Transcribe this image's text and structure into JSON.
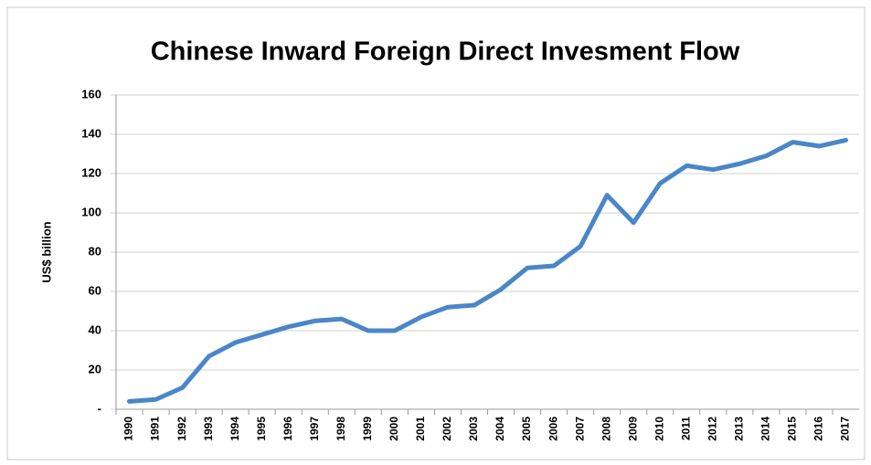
{
  "chart_data": {
    "type": "line",
    "title": "Chinese Inward Foreign Direct Invesment Flow",
    "ylabel": "US$ billion",
    "categories": [
      "1990",
      "1991",
      "1992",
      "1993",
      "1994",
      "1995",
      "1996",
      "1997",
      "1998",
      "1999",
      "2000",
      "2001",
      "2002",
      "2003",
      "2004",
      "2005",
      "2006",
      "2007",
      "2008",
      "2009",
      "2010",
      "2011",
      "2012",
      "2013",
      "2014",
      "2015",
      "2016",
      "2017"
    ],
    "series": [
      {
        "color": "#4a86c8",
        "values": [
          4,
          5,
          11,
          27,
          34,
          38,
          42,
          45,
          46,
          40,
          40,
          47,
          52,
          53,
          61,
          72,
          73,
          83,
          109,
          95,
          115,
          124,
          122,
          125,
          129,
          136,
          134,
          137
        ]
      }
    ],
    "ylim": [
      0,
      160
    ],
    "yticks": [
      {
        "value": 0,
        "label": "-"
      },
      20,
      40,
      60,
      80,
      100,
      120,
      140,
      160
    ],
    "grid": true
  }
}
